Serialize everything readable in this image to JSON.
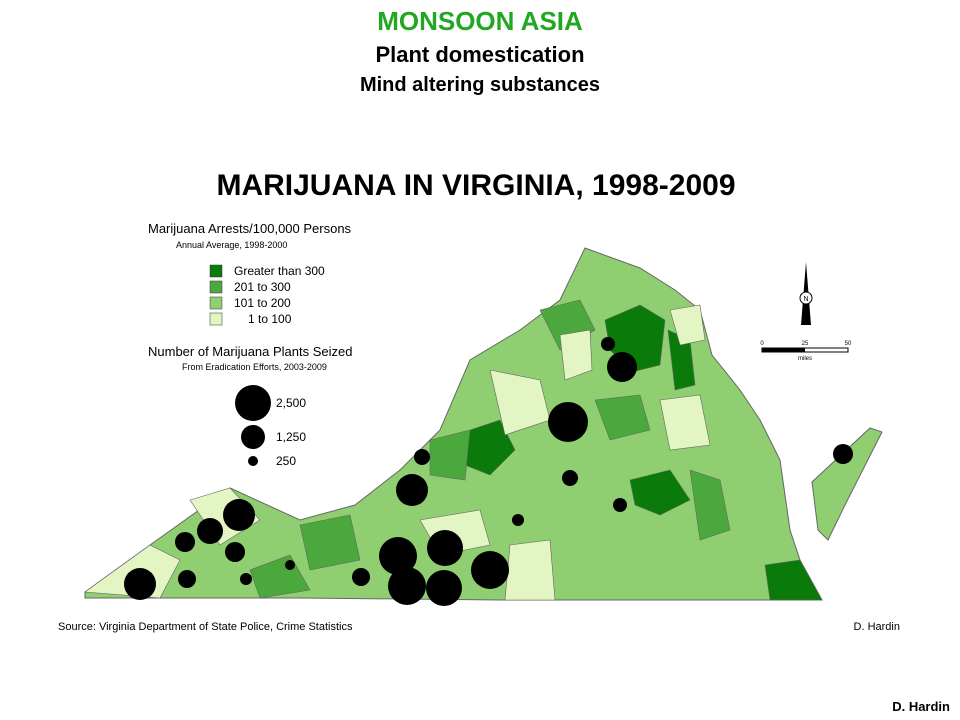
{
  "header": {
    "title": "MONSOON ASIA",
    "subtitle": "Plant domestication",
    "subtitle2": "Mind altering substances"
  },
  "map": {
    "title": "MARIJUANA IN VIRGINIA, 1998-2009",
    "legend_arrests": {
      "title": "Marijuana Arrests/100,000 Persons",
      "subtitle": "Annual Average, 1998-2000",
      "classes": [
        {
          "label": "Greater than 300",
          "color": "#0a7a0a"
        },
        {
          "label": "201 to 300",
          "color": "#4aa83c"
        },
        {
          "label": "101 to 200",
          "color": "#8fcf72"
        },
        {
          "label": "1 to 100",
          "color": "#e3f5c2"
        }
      ]
    },
    "legend_plants": {
      "title": "Number of Marijuana Plants Seized",
      "subtitle": "From Eradication Efforts, 2003-2009",
      "sizes": [
        "2,500",
        "1,250",
        "250"
      ]
    },
    "north": "N",
    "scale": {
      "labels": [
        "0",
        "25",
        "50"
      ],
      "unit": "miles"
    },
    "source": "Source: Virginia Department of State Police, Crime Statistics",
    "credit": "D. Hardin"
  },
  "footer_credit": "D. Hardin"
}
